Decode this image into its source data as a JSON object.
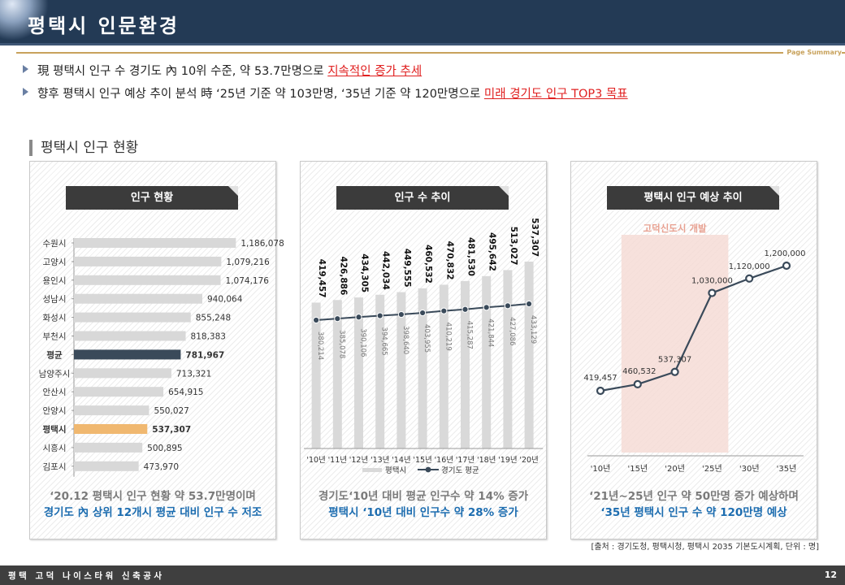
{
  "header": {
    "title": "평택시 인문환경",
    "page_summary": "Page Summary"
  },
  "bullets": [
    {
      "prefix": "現 평택시 인구 수 경기도 內 10위 수준, 약 53.7만명으로 ",
      "highlight": "지속적인 증가 추세"
    },
    {
      "prefix": "향후 평택시 인구 예상 추이 분석 時 ‘25년 기준 약 103만명, ‘35년 기준 약 120만명으로 ",
      "highlight": "미래 경기도 인구 TOP3 목표"
    }
  ],
  "section_title": "평택시 인구 현황",
  "panel1": {
    "title": "인구 현황",
    "caption_line1": "‘20.12 평택시 인구 현황 약 53.7만명이며",
    "caption_line2": "경기도 內 상위 12개시 평균 대비 인구 수 저조"
  },
  "panel2": {
    "title": "인구 수 추이",
    "caption_line1": "경기도‘10년 대비 평균 인구수 약 14% 증가",
    "caption_line2": "평택시 ‘10년 대비 인구수 약 28% 증가"
  },
  "panel3": {
    "title": "평택시 인구 예상 추이",
    "highlight_label": "고덕신도시 개발",
    "caption_line1": "‘21년~25년 인구 약 50만명 증가 예상하며",
    "caption_line2": "‘35년 평택시 인구 수 약 120만명 예상"
  },
  "colors": {
    "highlight_bar": "#f0b870",
    "avg_bar": "#3a4a5a",
    "default_bar": "#d8d8d8",
    "accent_red": "#e02020",
    "caption_blue": "#1d6db0"
  },
  "source": "[출처 : 경기도청, 평택시청, 평택시 2035 기본도시계획, 단위 : 명]",
  "footer": {
    "text": "평택 고덕 나이스타워 신축공사",
    "page_number": "12"
  },
  "chart_data": [
    {
      "type": "bar",
      "orientation": "horizontal",
      "title": "인구 현황",
      "categories": [
        "수원시",
        "고양시",
        "용인시",
        "성남시",
        "화성시",
        "부천시",
        "평균",
        "남양주시",
        "안산시",
        "안양시",
        "평택시",
        "시흥시",
        "김포시"
      ],
      "values": [
        1186078,
        1079216,
        1074176,
        940064,
        855248,
        818383,
        781967,
        713321,
        654915,
        550027,
        537307,
        500895,
        473970
      ],
      "value_labels": [
        "1,186,078",
        "1,079,216",
        "1,074,176",
        "940,064",
        "855,248",
        "818,383",
        "781,967",
        "713,321",
        "654,915",
        "550,027",
        "537,307",
        "500,895",
        "473,970"
      ],
      "highlight": {
        "평균": "avg",
        "평택시": "pyeongtaek"
      }
    },
    {
      "type": "bar",
      "title": "인구 수 추이",
      "categories": [
        "'10년",
        "'11년",
        "'12년",
        "'13년",
        "'14년",
        "'15년",
        "'16년",
        "'17년",
        "'18년",
        "'19년",
        "'20년"
      ],
      "series": [
        {
          "name": "평택시",
          "type": "bar",
          "values": [
            419457,
            426886,
            434305,
            442034,
            449555,
            460532,
            470832,
            481530,
            495642,
            513027,
            537307
          ],
          "labels": [
            "419,457",
            "426,886",
            "434,305",
            "442,034",
            "449,555",
            "460,532",
            "470,832",
            "481,530",
            "495,642",
            "513,027",
            "537,307"
          ]
        },
        {
          "name": "경기도 평균",
          "type": "line",
          "values": [
            380214,
            385078,
            390106,
            394665,
            398640,
            403955,
            410219,
            415287,
            421844,
            427086,
            433129
          ],
          "labels": [
            "380,214",
            "385,078",
            "390,106",
            "394,665",
            "398,640",
            "403,955",
            "410,219",
            "415,287",
            "421,844",
            "427,086",
            "433,129"
          ]
        }
      ],
      "legend": "bottom"
    },
    {
      "type": "line",
      "title": "평택시 인구 예상 추이",
      "x": [
        "'10년",
        "'15년",
        "'20년",
        "'25년",
        "'30년",
        "'35년"
      ],
      "values": [
        419457,
        460532,
        537307,
        1030000,
        1120000,
        1200000
      ],
      "labels": [
        "419,457",
        "460,532",
        "537,307",
        "1,030,000",
        "1,120,000",
        "1,200,000"
      ],
      "shaded_region": [
        "'15년",
        "'25년"
      ]
    }
  ]
}
